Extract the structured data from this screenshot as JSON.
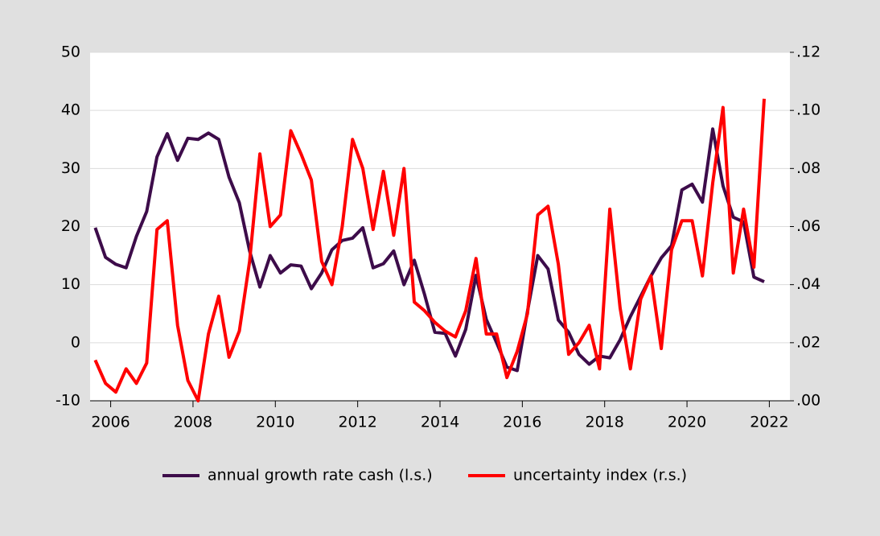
{
  "chart_data": {
    "type": "line",
    "x": [
      2005.625,
      2005.875,
      2006.125,
      2006.375,
      2006.625,
      2006.875,
      2007.125,
      2007.375,
      2007.625,
      2007.875,
      2008.125,
      2008.375,
      2008.625,
      2008.875,
      2009.125,
      2009.375,
      2009.625,
      2009.875,
      2010.125,
      2010.375,
      2010.625,
      2010.875,
      2011.125,
      2011.375,
      2011.625,
      2011.875,
      2012.125,
      2012.375,
      2012.625,
      2012.875,
      2013.125,
      2013.375,
      2013.625,
      2013.875,
      2014.125,
      2014.375,
      2014.625,
      2014.875,
      2015.125,
      2015.375,
      2015.625,
      2015.875,
      2016.125,
      2016.375,
      2016.625,
      2016.875,
      2017.125,
      2017.375,
      2017.625,
      2017.875,
      2018.125,
      2018.375,
      2018.625,
      2018.875,
      2019.125,
      2019.375,
      2019.625,
      2019.875,
      2020.125,
      2020.375,
      2020.625,
      2020.875,
      2021.125,
      2021.375,
      2021.625,
      2021.875
    ],
    "series": [
      {
        "name": "annual growth rate cash (l.s.)",
        "color": "#3d0c4a",
        "axis": "y",
        "values": [
          19.8,
          14.7,
          13.5,
          12.9,
          18.3,
          22.6,
          32,
          36,
          31.4,
          35.2,
          35,
          36.1,
          35,
          28.5,
          24.1,
          15.8,
          9.6,
          15,
          12,
          13.4,
          13.2,
          9.3,
          12,
          16,
          17.6,
          18,
          19.8,
          12.9,
          13.6,
          15.8,
          10,
          14.2,
          8.3,
          1.8,
          1.6,
          -2.3,
          2.3,
          11.6,
          4,
          0,
          -4.2,
          -4.8,
          5.4,
          15,
          12.7,
          3.9,
          1.8,
          -2,
          -3.7,
          -2.3,
          -2.6,
          0.5,
          4.5,
          8,
          11.5,
          14.6,
          16.7,
          26.3,
          27.3,
          24.2,
          36.8,
          27,
          21.6,
          20.8,
          11.3,
          10.5
        ]
      },
      {
        "name": "uncertainty index (r.s.)",
        "color": "#ff0000",
        "axis": "y2",
        "values": [
          0.014,
          0.006,
          0.003,
          0.011,
          0.006,
          0.013,
          0.059,
          0.062,
          0.026,
          0.007,
          0.0,
          0.023,
          0.036,
          0.015,
          0.024,
          0.048,
          0.085,
          0.06,
          0.064,
          0.093,
          0.085,
          0.076,
          0.048,
          0.04,
          0.06,
          0.09,
          0.08,
          0.059,
          0.079,
          0.057,
          0.08,
          0.034,
          0.031,
          0.027,
          0.024,
          0.022,
          0.031,
          0.049,
          0.023,
          0.023,
          0.008,
          0.017,
          0.03,
          0.064,
          0.067,
          0.047,
          0.016,
          0.02,
          0.026,
          0.011,
          0.066,
          0.032,
          0.011,
          0.035,
          0.043,
          0.018,
          0.052,
          0.062,
          0.062,
          0.043,
          0.075,
          0.101,
          0.044,
          0.066,
          0.046,
          0.104
        ]
      }
    ],
    "xlim": [
      2005.5,
      2022.5
    ],
    "xticks": [
      2006,
      2008,
      2010,
      2012,
      2014,
      2016,
      2018,
      2020,
      2022
    ],
    "ylim": [
      -10,
      50
    ],
    "yticks": [
      -10,
      0,
      10,
      20,
      30,
      40,
      50
    ],
    "y2lim": [
      0,
      0.12
    ],
    "y2ticks": [
      {
        "value": 0,
        "label": ".00"
      },
      {
        "value": 0.02,
        "label": ".02"
      },
      {
        "value": 0.04,
        "label": ".04"
      },
      {
        "value": 0.06,
        "label": ".06"
      },
      {
        "value": 0.08,
        "label": ".08"
      },
      {
        "value": 0.1,
        "label": ".10"
      },
      {
        "value": 0.12,
        "label": ".12"
      }
    ],
    "grid": true,
    "legend": "bottom"
  }
}
